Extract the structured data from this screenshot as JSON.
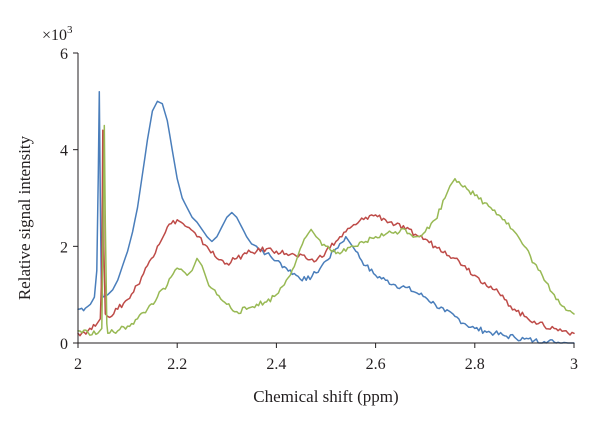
{
  "chart_data": {
    "type": "line",
    "title": "",
    "xlabel": "Chemical shift (ppm)",
    "ylabel": "Relative signal intensity",
    "y_multiplier_label": "×10",
    "y_multiplier_exponent": "3",
    "xlim": [
      2,
      3
    ],
    "ylim": [
      0,
      6
    ],
    "x_ticks": [
      {
        "value": 2,
        "label": "2"
      },
      {
        "value": 2.2,
        "label": "2.2"
      },
      {
        "value": 2.4,
        "label": "2.4"
      },
      {
        "value": 2.6,
        "label": "2.6"
      },
      {
        "value": 2.8,
        "label": "2.8"
      },
      {
        "value": 3,
        "label": "3"
      }
    ],
    "y_ticks": [
      {
        "value": 0,
        "label": "0"
      },
      {
        "value": 2,
        "label": "2"
      },
      {
        "value": 4,
        "label": "4"
      },
      {
        "value": 6,
        "label": "6"
      }
    ],
    "grid": false,
    "legend": "none",
    "series": [
      {
        "color": "#4a7ebb",
        "points": [
          [
            2.0,
            0.7
          ],
          [
            2.015,
            0.72
          ],
          [
            2.025,
            0.8
          ],
          [
            2.033,
            0.95
          ],
          [
            2.038,
            1.5
          ],
          [
            2.041,
            3.5
          ],
          [
            2.043,
            5.2
          ],
          [
            2.045,
            3.0
          ],
          [
            2.047,
            1.2
          ],
          [
            2.05,
            0.95
          ],
          [
            2.06,
            1.0
          ],
          [
            2.07,
            1.1
          ],
          [
            2.08,
            1.3
          ],
          [
            2.09,
            1.6
          ],
          [
            2.1,
            1.9
          ],
          [
            2.11,
            2.3
          ],
          [
            2.12,
            2.8
          ],
          [
            2.13,
            3.5
          ],
          [
            2.14,
            4.2
          ],
          [
            2.15,
            4.8
          ],
          [
            2.16,
            5.0
          ],
          [
            2.17,
            4.95
          ],
          [
            2.18,
            4.6
          ],
          [
            2.19,
            4.0
          ],
          [
            2.2,
            3.4
          ],
          [
            2.21,
            3.0
          ],
          [
            2.22,
            2.8
          ],
          [
            2.23,
            2.6
          ],
          [
            2.24,
            2.5
          ],
          [
            2.25,
            2.35
          ],
          [
            2.26,
            2.2
          ],
          [
            2.27,
            2.1
          ],
          [
            2.28,
            2.2
          ],
          [
            2.29,
            2.4
          ],
          [
            2.3,
            2.6
          ],
          [
            2.31,
            2.7
          ],
          [
            2.32,
            2.6
          ],
          [
            2.33,
            2.4
          ],
          [
            2.34,
            2.2
          ],
          [
            2.35,
            2.05
          ],
          [
            2.36,
            2.0
          ],
          [
            2.38,
            1.85
          ],
          [
            2.4,
            1.7
          ],
          [
            2.42,
            1.55
          ],
          [
            2.44,
            1.4
          ],
          [
            2.46,
            1.3
          ],
          [
            2.48,
            1.45
          ],
          [
            2.5,
            1.7
          ],
          [
            2.52,
            1.95
          ],
          [
            2.54,
            2.2
          ],
          [
            2.55,
            2.05
          ],
          [
            2.56,
            1.9
          ],
          [
            2.58,
            1.6
          ],
          [
            2.6,
            1.4
          ],
          [
            2.62,
            1.3
          ],
          [
            2.64,
            1.2
          ],
          [
            2.66,
            1.15
          ],
          [
            2.68,
            1.05
          ],
          [
            2.7,
            0.95
          ],
          [
            2.72,
            0.8
          ],
          [
            2.74,
            0.65
          ],
          [
            2.76,
            0.55
          ],
          [
            2.78,
            0.4
          ],
          [
            2.8,
            0.3
          ],
          [
            2.82,
            0.25
          ],
          [
            2.84,
            0.2
          ],
          [
            2.86,
            0.15
          ],
          [
            2.88,
            0.12
          ],
          [
            2.9,
            0.08
          ],
          [
            2.92,
            0.05
          ],
          [
            2.94,
            0.03
          ],
          [
            2.96,
            0.02
          ],
          [
            2.98,
            0.01
          ],
          [
            3.0,
            0.0
          ]
        ]
      },
      {
        "color": "#be4b48",
        "points": [
          [
            2.0,
            0.2
          ],
          [
            2.02,
            0.25
          ],
          [
            2.035,
            0.35
          ],
          [
            2.045,
            0.5
          ],
          [
            2.048,
            1.5
          ],
          [
            2.05,
            4.4
          ],
          [
            2.052,
            2.0
          ],
          [
            2.055,
            0.6
          ],
          [
            2.06,
            0.55
          ],
          [
            2.08,
            0.7
          ],
          [
            2.1,
            0.9
          ],
          [
            2.12,
            1.2
          ],
          [
            2.14,
            1.6
          ],
          [
            2.16,
            2.0
          ],
          [
            2.18,
            2.4
          ],
          [
            2.2,
            2.55
          ],
          [
            2.22,
            2.4
          ],
          [
            2.24,
            2.2
          ],
          [
            2.26,
            2.0
          ],
          [
            2.28,
            1.75
          ],
          [
            2.3,
            1.65
          ],
          [
            2.32,
            1.75
          ],
          [
            2.34,
            1.85
          ],
          [
            2.36,
            1.9
          ],
          [
            2.38,
            1.95
          ],
          [
            2.4,
            1.9
          ],
          [
            2.42,
            1.85
          ],
          [
            2.44,
            1.8
          ],
          [
            2.46,
            1.75
          ],
          [
            2.48,
            1.7
          ],
          [
            2.5,
            1.9
          ],
          [
            2.52,
            2.1
          ],
          [
            2.54,
            2.3
          ],
          [
            2.56,
            2.45
          ],
          [
            2.58,
            2.6
          ],
          [
            2.6,
            2.65
          ],
          [
            2.62,
            2.55
          ],
          [
            2.64,
            2.45
          ],
          [
            2.66,
            2.35
          ],
          [
            2.68,
            2.25
          ],
          [
            2.7,
            2.15
          ],
          [
            2.72,
            2.0
          ],
          [
            2.74,
            1.9
          ],
          [
            2.76,
            1.75
          ],
          [
            2.78,
            1.6
          ],
          [
            2.8,
            1.4
          ],
          [
            2.82,
            1.25
          ],
          [
            2.84,
            1.1
          ],
          [
            2.86,
            0.9
          ],
          [
            2.88,
            0.7
          ],
          [
            2.9,
            0.55
          ],
          [
            2.92,
            0.45
          ],
          [
            2.94,
            0.35
          ],
          [
            2.96,
            0.3
          ],
          [
            2.98,
            0.25
          ],
          [
            3.0,
            0.2
          ]
        ]
      },
      {
        "color": "#98b954",
        "points": [
          [
            2.0,
            0.25
          ],
          [
            2.02,
            0.22
          ],
          [
            2.04,
            0.2
          ],
          [
            2.048,
            0.3
          ],
          [
            2.051,
            2.5
          ],
          [
            2.053,
            4.5
          ],
          [
            2.055,
            2.5
          ],
          [
            2.058,
            0.4
          ],
          [
            2.06,
            0.2
          ],
          [
            2.08,
            0.25
          ],
          [
            2.1,
            0.35
          ],
          [
            2.12,
            0.5
          ],
          [
            2.14,
            0.7
          ],
          [
            2.16,
            0.95
          ],
          [
            2.18,
            1.2
          ],
          [
            2.2,
            1.55
          ],
          [
            2.22,
            1.4
          ],
          [
            2.23,
            1.5
          ],
          [
            2.24,
            1.75
          ],
          [
            2.25,
            1.6
          ],
          [
            2.26,
            1.3
          ],
          [
            2.28,
            1.0
          ],
          [
            2.3,
            0.8
          ],
          [
            2.32,
            0.65
          ],
          [
            2.34,
            0.7
          ],
          [
            2.36,
            0.8
          ],
          [
            2.38,
            0.85
          ],
          [
            2.4,
            1.0
          ],
          [
            2.42,
            1.3
          ],
          [
            2.44,
            1.7
          ],
          [
            2.46,
            2.2
          ],
          [
            2.47,
            2.35
          ],
          [
            2.48,
            2.2
          ],
          [
            2.5,
            2.0
          ],
          [
            2.52,
            1.85
          ],
          [
            2.54,
            1.9
          ],
          [
            2.56,
            2.0
          ],
          [
            2.58,
            2.1
          ],
          [
            2.6,
            2.2
          ],
          [
            2.62,
            2.25
          ],
          [
            2.64,
            2.3
          ],
          [
            2.66,
            2.35
          ],
          [
            2.68,
            2.2
          ],
          [
            2.7,
            2.3
          ],
          [
            2.72,
            2.55
          ],
          [
            2.74,
            3.0
          ],
          [
            2.75,
            3.25
          ],
          [
            2.76,
            3.4
          ],
          [
            2.78,
            3.25
          ],
          [
            2.8,
            3.05
          ],
          [
            2.82,
            2.9
          ],
          [
            2.84,
            2.75
          ],
          [
            2.86,
            2.55
          ],
          [
            2.88,
            2.3
          ],
          [
            2.9,
            2.0
          ],
          [
            2.92,
            1.65
          ],
          [
            2.94,
            1.3
          ],
          [
            2.96,
            1.0
          ],
          [
            2.98,
            0.75
          ],
          [
            3.0,
            0.6
          ]
        ]
      }
    ]
  }
}
